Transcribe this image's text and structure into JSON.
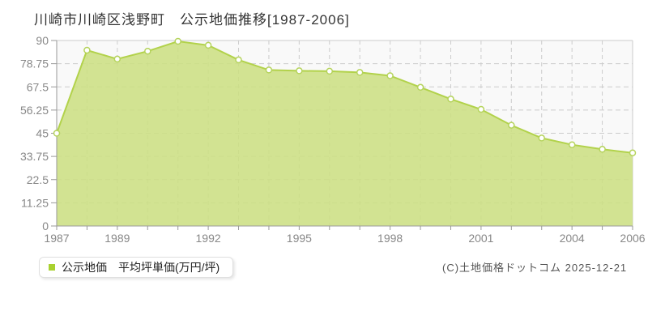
{
  "page": {
    "title": "川崎市川崎区浅野町　公示地価推移[1987-2006]",
    "copyright": "(C)土地価格ドットコム 2025-12-21"
  },
  "legend": {
    "label": "公示地価　平均坪単価(万円/坪)",
    "swatch_color": "#a9d130"
  },
  "chart_data": {
    "type": "area",
    "title": "川崎市川崎区浅野町 公示地価推移[1987-2006]",
    "series_name": "公示地価 平均坪単価(万円/坪)",
    "x": [
      1987,
      1988,
      1989,
      1990,
      1991,
      1992,
      1993,
      1994,
      1995,
      1996,
      1997,
      1998,
      1999,
      2000,
      2001,
      2002,
      2003,
      2004,
      2005,
      2006
    ],
    "values": [
      45.0,
      85.3,
      81.0,
      84.8,
      89.6,
      87.7,
      80.6,
      75.7,
      75.3,
      75.1,
      74.5,
      72.9,
      67.3,
      61.6,
      56.6,
      48.9,
      42.7,
      39.4,
      37.2,
      35.5
    ],
    "ylabel": "平均坪単価(万円/坪)",
    "xlabel": "",
    "ylim": [
      0,
      90
    ],
    "yticks": [
      0,
      11.25,
      22.5,
      33.75,
      45,
      56.25,
      67.5,
      78.75,
      90
    ],
    "ytick_labels": [
      "0",
      "11.25",
      "22.5",
      "33.75",
      "45",
      "56.25",
      "67.5",
      "78.75",
      "90"
    ],
    "xtick_labels": [
      "1987",
      "1989",
      "1992",
      "1995",
      "1998",
      "2001",
      "2004",
      "2006"
    ],
    "grid": true,
    "grid_style": "dashed",
    "legend_position": "bottom-left",
    "colors": {
      "area_fill": "#cbdf80",
      "line": "#b2d24b",
      "marker_fill": "#ffffff",
      "marker_stroke": "#b5d35c",
      "grid": "#cccccc",
      "axis": "#999999",
      "border": "#cccccc",
      "plot_bg": "#f9f9f9",
      "tick_label": "#888888"
    }
  }
}
